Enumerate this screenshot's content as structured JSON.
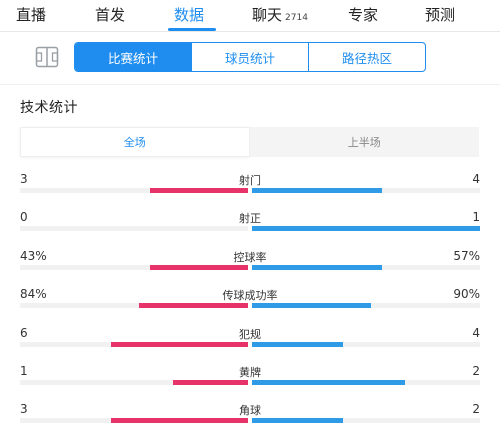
{
  "nav": {
    "items": [
      {
        "label": "直播"
      },
      {
        "label": "首发"
      },
      {
        "label": "数据"
      },
      {
        "label": "聊天",
        "count": "2714"
      },
      {
        "label": "专家"
      },
      {
        "label": "预测"
      }
    ],
    "active_index": 2
  },
  "subtabs": [
    {
      "label": "比赛统计",
      "active": true
    },
    {
      "label": "球员统计",
      "active": false
    },
    {
      "label": "路径热区",
      "active": false
    }
  ],
  "section_title": "技术统计",
  "period_tabs": [
    {
      "label": "全场",
      "active": true
    },
    {
      "label": "上半场",
      "active": false
    }
  ],
  "stats": [
    {
      "label": "射门",
      "home": "3",
      "away": "4",
      "home_share": 0.43,
      "away_share": 0.57
    },
    {
      "label": "射正",
      "home": "0",
      "away": "1",
      "home_share": 0.0,
      "away_share": 1.0
    },
    {
      "label": "控球率",
      "home": "43%",
      "away": "57%",
      "home_share": 0.43,
      "away_share": 0.57
    },
    {
      "label": "传球成功率",
      "home": "84%",
      "away": "90%",
      "home_share": 0.48,
      "away_share": 0.52
    },
    {
      "label": "犯规",
      "home": "6",
      "away": "4",
      "home_share": 0.6,
      "away_share": 0.4
    },
    {
      "label": "黄牌",
      "home": "1",
      "away": "2",
      "home_share": 0.33,
      "away_share": 0.67
    },
    {
      "label": "角球",
      "home": "3",
      "away": "2",
      "home_share": 0.6,
      "away_share": 0.4
    }
  ],
  "colors": {
    "accent": "#1f8df0",
    "home": "#e8336a",
    "away": "#2f9be6"
  }
}
